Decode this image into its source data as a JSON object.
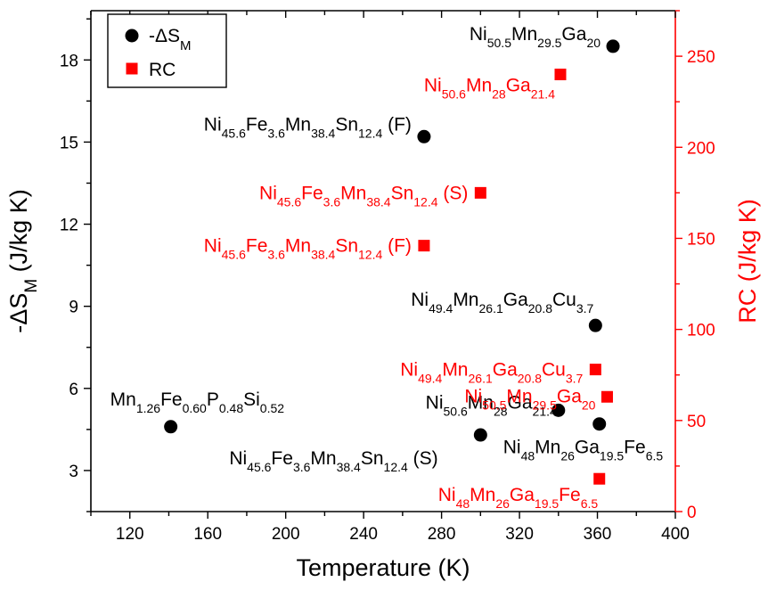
{
  "colors": {
    "left_series": "#000000",
    "right_series": "#ff0000",
    "axis_left": "#000000",
    "axis_right": "#ff0000"
  },
  "chart_data": {
    "type": "scatter",
    "title": "",
    "xlabel": "Temperature (K)",
    "xlim": [
      100,
      400
    ],
    "xticks": [
      120,
      160,
      200,
      240,
      280,
      320,
      360,
      400
    ],
    "ylabel_left": {
      "prefix": "-ΔS",
      "sub": "M",
      "suffix": " (J/kg K)"
    },
    "ylim_left": [
      1.5,
      19.8
    ],
    "yticks_left": [
      3,
      6,
      9,
      12,
      15,
      18
    ],
    "ylabel_right": "RC (J/kg K)",
    "ylim_right": [
      0,
      275
    ],
    "yticks_right": [
      0,
      50,
      100,
      150,
      200,
      250
    ],
    "grid": false,
    "legend_position": "top-left",
    "series": [
      {
        "name": {
          "prefix": "-ΔS",
          "sub": "M"
        },
        "axis": "left",
        "marker": "circle",
        "color": "#000000",
        "points": [
          {
            "x": 368,
            "y": 18.5,
            "label": [
              [
                "Ni",
                "50.5"
              ],
              [
                "Mn",
                "29.5"
              ],
              [
                "Ga",
                "20"
              ]
            ],
            "suffix": ""
          },
          {
            "x": 271,
            "y": 15.2,
            "label": [
              [
                "Ni",
                "45.6"
              ],
              [
                "Fe",
                "3.6"
              ],
              [
                "Mn",
                "38.4"
              ],
              [
                "Sn",
                "12.4"
              ]
            ],
            "suffix": " (F)"
          },
          {
            "x": 359,
            "y": 8.3,
            "label": [
              [
                "Ni",
                "49.4"
              ],
              [
                "Mn",
                "26.1"
              ],
              [
                "Ga",
                "20.8"
              ],
              [
                "Cu",
                "3.7"
              ]
            ],
            "suffix": ""
          },
          {
            "x": 340,
            "y": 5.2,
            "label": [
              [
                "Ni",
                "50.6"
              ],
              [
                "Mn",
                "28"
              ],
              [
                "Ga",
                "21.4"
              ]
            ],
            "suffix": ""
          },
          {
            "x": 141,
            "y": 4.6,
            "label": [
              [
                "Mn",
                "1.26"
              ],
              [
                "Fe",
                "0.60"
              ],
              [
                "P",
                "0.48"
              ],
              [
                "Si",
                "0.52"
              ]
            ],
            "suffix": ""
          },
          {
            "x": 300,
            "y": 4.3,
            "label": [
              [
                "Ni",
                "45.6"
              ],
              [
                "Fe",
                "3.6"
              ],
              [
                "Mn",
                "38.4"
              ],
              [
                "Sn",
                "12.4"
              ]
            ],
            "suffix": " (S)"
          },
          {
            "x": 361,
            "y": 4.7,
            "label": [
              [
                "Ni",
                "48"
              ],
              [
                "Mn",
                "26"
              ],
              [
                "Ga",
                "19.5"
              ],
              [
                "Fe",
                "6.5"
              ]
            ],
            "suffix": ""
          }
        ]
      },
      {
        "name": "RC",
        "axis": "right",
        "marker": "square",
        "color": "#ff0000",
        "points": [
          {
            "x": 341,
            "y": 240,
            "label": [
              [
                "Ni",
                "50.6"
              ],
              [
                "Mn",
                "28"
              ],
              [
                "Ga",
                "21.4"
              ]
            ],
            "suffix": ""
          },
          {
            "x": 300,
            "y": 175,
            "label": [
              [
                "Ni",
                "45.6"
              ],
              [
                "Fe",
                "3.6"
              ],
              [
                "Mn",
                "38.4"
              ],
              [
                "Sn",
                "12.4"
              ]
            ],
            "suffix": " (S)"
          },
          {
            "x": 271,
            "y": 146,
            "label": [
              [
                "Ni",
                "45.6"
              ],
              [
                "Fe",
                "3.6"
              ],
              [
                "Mn",
                "38.4"
              ],
              [
                "Sn",
                "12.4"
              ]
            ],
            "suffix": " (F)"
          },
          {
            "x": 359,
            "y": 78,
            "label": [
              [
                "Ni",
                "49.4"
              ],
              [
                "Mn",
                "26.1"
              ],
              [
                "Ga",
                "20.8"
              ],
              [
                "Cu",
                "3.7"
              ]
            ],
            "suffix": ""
          },
          {
            "x": 365,
            "y": 63,
            "label": [
              [
                "Ni",
                "50.5"
              ],
              [
                "Mn",
                "29.5"
              ],
              [
                "Ga",
                "20"
              ]
            ],
            "suffix": ""
          },
          {
            "x": 361,
            "y": 18,
            "label": [
              [
                "Ni",
                "48"
              ],
              [
                "Mn",
                "26"
              ],
              [
                "Ga",
                "19.5"
              ],
              [
                "Fe",
                "6.5"
              ]
            ],
            "suffix": ""
          }
        ]
      }
    ]
  }
}
